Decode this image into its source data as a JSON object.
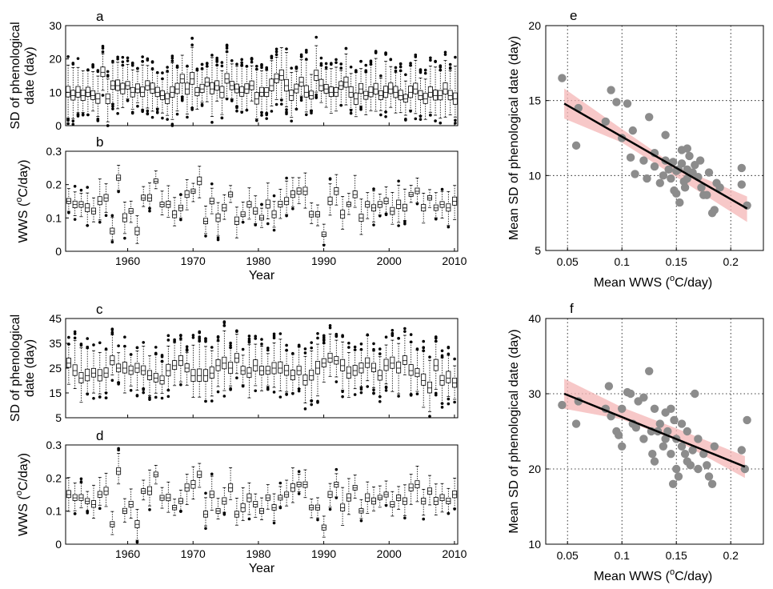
{
  "colors": {
    "ci_band": "#f4b6b6",
    "regression_line": "#000000",
    "scatter_point": "#8c8c8c",
    "box": "#000000",
    "grid": "#000000"
  },
  "chart_data": [
    {
      "panel": "a",
      "type": "box",
      "xlabel": "",
      "ylabel": "SD of phenological date (day)",
      "ylabel_lines": [
        "SD of phenological",
        "date (day)"
      ],
      "ylim": [
        0,
        30
      ],
      "yticks": [
        "0",
        "10",
        "20",
        "30"
      ],
      "xlim": [
        1950.5,
        2010.5
      ],
      "xticks": [],
      "median_by_year": [
        10,
        9,
        10,
        9,
        10,
        9,
        8,
        16,
        8,
        12,
        12,
        11,
        12,
        10,
        11,
        10,
        12,
        11,
        10,
        9,
        8,
        10,
        11,
        14,
        11,
        14,
        10,
        11,
        13,
        11,
        12,
        10,
        14,
        12,
        11,
        10,
        11,
        12,
        8,
        10,
        10,
        12,
        14,
        15,
        12,
        9,
        11,
        13,
        10,
        9,
        15,
        12,
        11,
        10,
        10,
        12,
        13,
        10,
        8,
        11,
        9,
        10,
        11,
        9,
        10,
        11,
        10,
        9,
        8,
        10,
        11,
        9,
        8,
        10,
        9,
        9,
        11,
        9,
        8
      ]
    },
    {
      "panel": "b",
      "type": "box",
      "xlabel": "Year",
      "ylabel": "WWS (°C/day)",
      "ylabel_parts": [
        "WWS (",
        "o",
        "C/day)"
      ],
      "ylim": [
        0,
        0.3
      ],
      "yticks": [
        "0",
        "0.1",
        "0.2",
        "0.3"
      ],
      "xlim": [
        1950.5,
        2010.5
      ],
      "xticks": [
        "1960",
        "1970",
        "1980",
        "1990",
        "2000",
        "2010"
      ],
      "median_by_year": [
        0.15,
        0.14,
        0.14,
        0.13,
        0.12,
        0.15,
        0.16,
        0.06,
        0.22,
        0.1,
        0.12,
        0.06,
        0.16,
        0.16,
        0.21,
        0.14,
        0.14,
        0.11,
        0.13,
        0.17,
        0.18,
        0.21,
        0.09,
        0.15,
        0.1,
        0.13,
        0.17,
        0.09,
        0.11,
        0.14,
        0.12,
        0.1,
        0.14,
        0.11,
        0.14,
        0.15,
        0.17,
        0.18,
        0.18,
        0.11,
        0.11,
        0.05,
        0.15,
        0.18,
        0.11,
        0.14,
        0.17,
        0.1,
        0.14,
        0.13,
        0.14,
        0.15,
        0.12,
        0.14,
        0.13,
        0.17,
        0.18,
        0.13,
        0.16,
        0.13,
        0.14,
        0.13,
        0.15
      ]
    },
    {
      "panel": "c",
      "type": "box",
      "xlabel": "",
      "ylabel": "SD of phenological date (day)",
      "ylabel_lines": [
        "SD of phenological",
        "date (day)"
      ],
      "ylim": [
        5,
        45
      ],
      "yticks": [
        "5",
        "15",
        "25",
        "35",
        "45"
      ],
      "xlim": [
        1950.5,
        2010.5
      ],
      "xticks": [],
      "median_by_year": [
        27,
        24,
        21,
        22,
        23,
        22,
        23,
        28,
        25,
        25,
        24,
        25,
        24,
        22,
        21,
        20,
        24,
        26,
        28,
        25,
        22,
        22,
        22,
        23,
        26,
        27,
        25,
        29,
        24,
        23,
        26,
        24,
        24,
        25,
        25,
        24,
        22,
        24,
        20,
        22,
        25,
        27,
        29,
        28,
        26,
        23,
        24,
        25,
        27,
        25,
        22,
        26,
        27,
        25,
        28,
        24,
        23,
        20,
        17,
        26,
        20,
        21,
        19
      ]
    },
    {
      "panel": "d",
      "type": "box",
      "xlabel": "Year",
      "ylabel": "WWS (°C/day)",
      "ylabel_parts": [
        "WWS (",
        "o",
        "C/day)"
      ],
      "ylim": [
        0,
        0.3
      ],
      "yticks": [
        "0",
        "0.1",
        "0.2",
        "0.3"
      ],
      "xlim": [
        1950.5,
        2010.5
      ],
      "xticks": [
        "1960",
        "1970",
        "1980",
        "1990",
        "2000",
        "2010"
      ],
      "median_by_year": [
        0.15,
        0.14,
        0.14,
        0.13,
        0.12,
        0.15,
        0.16,
        0.06,
        0.22,
        0.1,
        0.12,
        0.06,
        0.16,
        0.16,
        0.21,
        0.14,
        0.14,
        0.11,
        0.13,
        0.17,
        0.18,
        0.21,
        0.09,
        0.15,
        0.1,
        0.13,
        0.17,
        0.09,
        0.11,
        0.14,
        0.12,
        0.1,
        0.14,
        0.11,
        0.14,
        0.15,
        0.17,
        0.18,
        0.18,
        0.11,
        0.11,
        0.05,
        0.15,
        0.18,
        0.11,
        0.14,
        0.17,
        0.1,
        0.14,
        0.13,
        0.14,
        0.15,
        0.12,
        0.14,
        0.13,
        0.17,
        0.18,
        0.13,
        0.16,
        0.13,
        0.14,
        0.13,
        0.15
      ]
    },
    {
      "panel": "e",
      "type": "scatter",
      "xlabel": "Mean WWS (°C/day)",
      "xlabel_parts": [
        "Mean WWS (",
        "o",
        "C/day)"
      ],
      "ylabel": "Mean SD of phenological date (day)",
      "xlim": [
        0.03,
        0.23
      ],
      "ylim": [
        5,
        20
      ],
      "xticks": [
        "0.05",
        "0.1",
        "0.15",
        "0.2"
      ],
      "yticks": [
        "5",
        "10",
        "15",
        "20"
      ],
      "grid": true,
      "points": [
        [
          0.045,
          16.5
        ],
        [
          0.058,
          12
        ],
        [
          0.06,
          14.5
        ],
        [
          0.085,
          13.6
        ],
        [
          0.09,
          15.7
        ],
        [
          0.095,
          14.9
        ],
        [
          0.1,
          12.5
        ],
        [
          0.105,
          14.8
        ],
        [
          0.11,
          13
        ],
        [
          0.108,
          11.2
        ],
        [
          0.112,
          10.1
        ],
        [
          0.12,
          11
        ],
        [
          0.123,
          9.8
        ],
        [
          0.125,
          13.9
        ],
        [
          0.13,
          11.5
        ],
        [
          0.13,
          10.6
        ],
        [
          0.135,
          9.5
        ],
        [
          0.138,
          10
        ],
        [
          0.14,
          12.7
        ],
        [
          0.14,
          11
        ],
        [
          0.143,
          10.4
        ],
        [
          0.145,
          9.8
        ],
        [
          0.147,
          10.9
        ],
        [
          0.148,
          9
        ],
        [
          0.15,
          10.3
        ],
        [
          0.15,
          8.8
        ],
        [
          0.152,
          10.4
        ],
        [
          0.153,
          8.2
        ],
        [
          0.155,
          11.7
        ],
        [
          0.155,
          10.8
        ],
        [
          0.157,
          9.6
        ],
        [
          0.158,
          9.2
        ],
        [
          0.16,
          11.8
        ],
        [
          0.16,
          10.4
        ],
        [
          0.16,
          9.8
        ],
        [
          0.162,
          11.3
        ],
        [
          0.165,
          10.2
        ],
        [
          0.167,
          10.7
        ],
        [
          0.17,
          9.9
        ],
        [
          0.172,
          11
        ],
        [
          0.173,
          9.2
        ],
        [
          0.175,
          8.7
        ],
        [
          0.178,
          8.7
        ],
        [
          0.18,
          10.2
        ],
        [
          0.183,
          7.5
        ],
        [
          0.185,
          7.7
        ],
        [
          0.187,
          9.5
        ],
        [
          0.19,
          9.2
        ],
        [
          0.21,
          10.5
        ],
        [
          0.21,
          9.4
        ],
        [
          0.215,
          8
        ]
      ],
      "fit_line": [
        [
          0.047,
          14.8
        ],
        [
          0.215,
          7.8
        ]
      ],
      "ci_upper": [
        [
          0.047,
          15.8
        ],
        [
          0.1,
          13.1
        ],
        [
          0.15,
          10.6
        ],
        [
          0.215,
          8.6
        ]
      ],
      "ci_lower": [
        [
          0.047,
          13.8
        ],
        [
          0.1,
          12.2
        ],
        [
          0.15,
          9.9
        ],
        [
          0.215,
          6.9
        ]
      ]
    },
    {
      "panel": "f",
      "type": "scatter",
      "xlabel": "Mean WWS (°C/day)",
      "xlabel_parts": [
        "Mean WWS (",
        "o",
        "C/day)"
      ],
      "ylabel": "Mean SD of phenological date (day)",
      "xlim": [
        0.03,
        0.23
      ],
      "ylim": [
        10,
        40
      ],
      "xticks": [
        "0.05",
        "0.1",
        "0.15",
        "0.2"
      ],
      "yticks": [
        "10",
        "20",
        "30",
        "40"
      ],
      "grid": true,
      "points": [
        [
          0.045,
          28.5
        ],
        [
          0.058,
          26
        ],
        [
          0.06,
          29
        ],
        [
          0.085,
          28
        ],
        [
          0.088,
          31
        ],
        [
          0.09,
          27
        ],
        [
          0.095,
          25
        ],
        [
          0.097,
          24.5
        ],
        [
          0.1,
          23
        ],
        [
          0.1,
          28
        ],
        [
          0.105,
          30.2
        ],
        [
          0.108,
          30
        ],
        [
          0.11,
          26
        ],
        [
          0.113,
          25.5
        ],
        [
          0.115,
          29
        ],
        [
          0.12,
          24
        ],
        [
          0.12,
          29.5
        ],
        [
          0.125,
          33
        ],
        [
          0.127,
          25
        ],
        [
          0.128,
          22
        ],
        [
          0.13,
          21
        ],
        [
          0.13,
          28
        ],
        [
          0.133,
          25
        ],
        [
          0.135,
          26
        ],
        [
          0.138,
          23
        ],
        [
          0.14,
          24
        ],
        [
          0.14,
          27.5
        ],
        [
          0.142,
          25
        ],
        [
          0.145,
          28
        ],
        [
          0.145,
          22
        ],
        [
          0.147,
          18
        ],
        [
          0.148,
          26.5
        ],
        [
          0.15,
          24
        ],
        [
          0.15,
          20
        ],
        [
          0.152,
          19
        ],
        [
          0.155,
          23
        ],
        [
          0.155,
          26
        ],
        [
          0.158,
          22
        ],
        [
          0.16,
          21
        ],
        [
          0.16,
          25
        ],
        [
          0.163,
          20.5
        ],
        [
          0.165,
          22.5
        ],
        [
          0.167,
          30
        ],
        [
          0.17,
          24
        ],
        [
          0.17,
          20
        ],
        [
          0.175,
          22
        ],
        [
          0.178,
          20.5
        ],
        [
          0.18,
          19
        ],
        [
          0.183,
          18
        ],
        [
          0.185,
          23
        ],
        [
          0.21,
          22.5
        ],
        [
          0.213,
          20
        ],
        [
          0.215,
          26.5
        ]
      ],
      "fit_line": [
        [
          0.047,
          30
        ],
        [
          0.213,
          20.3
        ]
      ],
      "ci_upper": [
        [
          0.047,
          32
        ],
        [
          0.1,
          28.2
        ],
        [
          0.15,
          25.4
        ],
        [
          0.213,
          21.7
        ]
      ],
      "ci_lower": [
        [
          0.047,
          28
        ],
        [
          0.1,
          26.6
        ],
        [
          0.15,
          23.8
        ],
        [
          0.213,
          18.8
        ]
      ]
    }
  ]
}
